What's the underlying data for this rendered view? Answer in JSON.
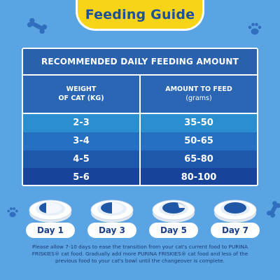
{
  "title": "Feeding Guide",
  "table": {
    "heading": "RECOMMENDED DAILY FEEDING AMOUNT",
    "col1_line1": "WEIGHT",
    "col1_line2": "OF CAT (KG)",
    "col2_line1": "AMOUNT TO FEED",
    "col2_line2": "(grams)",
    "rows": [
      {
        "weight": "2-3",
        "amount": "35-50"
      },
      {
        "weight": "3-4",
        "amount": "50-65"
      },
      {
        "weight": "4-5",
        "amount": "65-80"
      },
      {
        "weight": "5-6",
        "amount": "80-100"
      }
    ]
  },
  "days": [
    {
      "label": "Day 1"
    },
    {
      "label": "Day 3"
    },
    {
      "label": "Day 5"
    },
    {
      "label": "Day 7"
    }
  ],
  "note": "Please allow 7-10 days to ease the transition from your cat's current food to PURINA FRISKIES® cat food. Gradually add more PURINA FRISKIES® cat food and less of the previous food to your cat's bowl until the changeover is complete.",
  "colors": {
    "background": "#5aa4e4",
    "title_badge": "#f7d417",
    "title_text": "#1d4f9a",
    "table_dark": "#17449a"
  }
}
